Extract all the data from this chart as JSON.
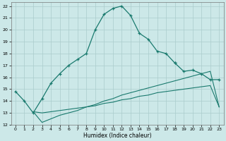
{
  "xlabel": "Humidex (Indice chaleur)",
  "bg_color": "#cce8e8",
  "grid_color": "#aacccc",
  "line_color": "#1a7a6e",
  "xlim": [
    -0.5,
    23.5
  ],
  "ylim": [
    12,
    22.3
  ],
  "xticks": [
    0,
    1,
    2,
    3,
    4,
    5,
    6,
    7,
    8,
    9,
    10,
    11,
    12,
    13,
    14,
    15,
    16,
    17,
    18,
    19,
    20,
    21,
    22,
    23
  ],
  "yticks": [
    12,
    13,
    14,
    15,
    16,
    17,
    18,
    19,
    20,
    21,
    22
  ],
  "curve1_x": [
    0,
    1,
    2,
    3,
    4,
    5,
    6,
    7,
    8,
    9,
    10,
    11,
    12,
    13,
    14,
    15,
    16,
    17,
    18
  ],
  "curve1_y": [
    14.8,
    14.0,
    13.0,
    14.2,
    15.5,
    16.3,
    17.0,
    17.5,
    18.0,
    20.0,
    21.3,
    21.8,
    22.0,
    21.2,
    19.7,
    19.2,
    18.2,
    18.0,
    17.2
  ],
  "curve2_x": [
    18,
    19,
    20,
    21,
    22,
    23
  ],
  "curve2_y": [
    17.2,
    16.5,
    16.6,
    16.3,
    15.8,
    15.8
  ],
  "curve3_x": [
    2,
    3,
    4,
    5,
    6,
    7,
    8,
    9,
    10,
    11,
    12,
    13,
    14,
    15,
    16,
    17,
    18,
    19,
    20,
    21,
    22,
    23
  ],
  "curve3_y": [
    13.1,
    12.2,
    12.5,
    12.8,
    13.0,
    13.2,
    13.5,
    13.7,
    14.0,
    14.2,
    14.5,
    14.7,
    14.9,
    15.1,
    15.3,
    15.5,
    15.7,
    15.9,
    16.1,
    16.3,
    16.5,
    13.5
  ],
  "curve4_x": [
    2,
    3,
    4,
    5,
    6,
    7,
    8,
    9,
    10,
    11,
    12,
    13,
    14,
    15,
    16,
    17,
    18,
    19,
    20,
    21,
    22,
    23
  ],
  "curve4_y": [
    13.1,
    13.0,
    13.1,
    13.2,
    13.3,
    13.4,
    13.5,
    13.6,
    13.8,
    13.9,
    14.1,
    14.2,
    14.4,
    14.5,
    14.7,
    14.8,
    14.9,
    15.0,
    15.1,
    15.2,
    15.3,
    13.5
  ]
}
